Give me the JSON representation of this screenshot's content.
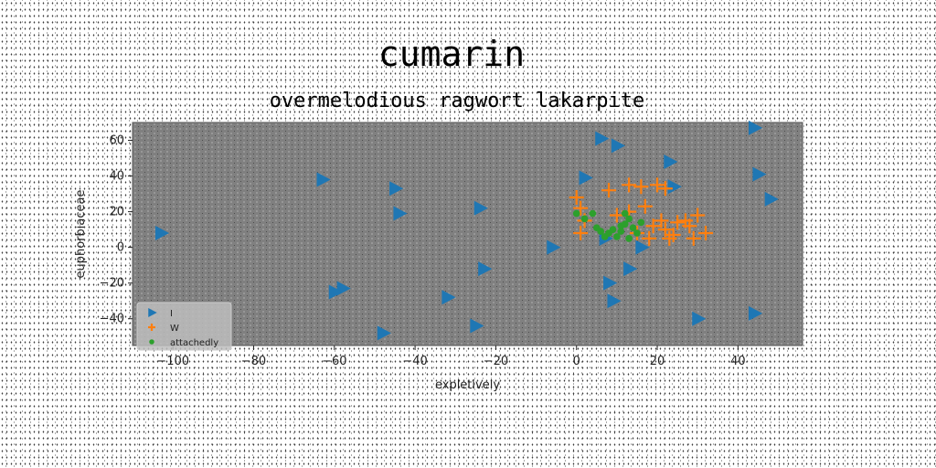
{
  "chart_data": {
    "type": "scatter",
    "title": "cumarin",
    "subtitle": "overmelodious ragwort lakarpite",
    "xlabel": "expletively",
    "ylabel": "euphorbiaceae",
    "xlim": [
      -110,
      56
    ],
    "ylim": [
      -55,
      70
    ],
    "xticks": [
      -100,
      -80,
      -60,
      -40,
      -20,
      0,
      20,
      40
    ],
    "yticks": [
      -40,
      -20,
      0,
      20,
      40,
      60
    ],
    "grid": false,
    "legend_position": "bottom-left",
    "background_color": "#808080",
    "series": [
      {
        "name": "I",
        "marker": "triangle-right",
        "color": "#1f77b4",
        "points": [
          [
            -103,
            8
          ],
          [
            -63,
            38
          ],
          [
            -45,
            33
          ],
          [
            -44,
            19
          ],
          [
            -24,
            22
          ],
          [
            -23,
            -12
          ],
          [
            -58,
            -23
          ],
          [
            -60,
            -25
          ],
          [
            -32,
            -28
          ],
          [
            -48,
            -48
          ],
          [
            -25,
            -44
          ],
          [
            -6,
            0
          ],
          [
            2,
            39
          ],
          [
            6,
            61
          ],
          [
            10,
            57
          ],
          [
            23,
            48
          ],
          [
            24,
            34
          ],
          [
            7,
            5
          ],
          [
            16,
            0
          ],
          [
            13,
            -12
          ],
          [
            8,
            -20
          ],
          [
            9,
            -30
          ],
          [
            30,
            -40
          ],
          [
            44,
            -37
          ],
          [
            44,
            67
          ],
          [
            45,
            41
          ],
          [
            48,
            27
          ]
        ]
      },
      {
        "name": "W",
        "marker": "plus",
        "color": "#ff7f0e",
        "points": [
          [
            0,
            28
          ],
          [
            1,
            22
          ],
          [
            2,
            15
          ],
          [
            1,
            8
          ],
          [
            8,
            32
          ],
          [
            13,
            35
          ],
          [
            16,
            34
          ],
          [
            20,
            35
          ],
          [
            22,
            33
          ],
          [
            17,
            23
          ],
          [
            13,
            20
          ],
          [
            10,
            18
          ],
          [
            19,
            12
          ],
          [
            21,
            15
          ],
          [
            22,
            10
          ],
          [
            24,
            7
          ],
          [
            25,
            14
          ],
          [
            28,
            12
          ],
          [
            29,
            5
          ],
          [
            27,
            15
          ],
          [
            30,
            18
          ],
          [
            32,
            8
          ],
          [
            18,
            5
          ],
          [
            15,
            8
          ],
          [
            23,
            5
          ]
        ]
      },
      {
        "name": "attachedly",
        "marker": "circle",
        "color": "#2ca02c",
        "points": [
          [
            0,
            19
          ],
          [
            2,
            16
          ],
          [
            4,
            19
          ],
          [
            5,
            11
          ],
          [
            6,
            9
          ],
          [
            7,
            6
          ],
          [
            8,
            8
          ],
          [
            9,
            10
          ],
          [
            10,
            6
          ],
          [
            11,
            9
          ],
          [
            12,
            13
          ],
          [
            12,
            19
          ],
          [
            13,
            16
          ],
          [
            14,
            11
          ],
          [
            15,
            8
          ],
          [
            16,
            14
          ],
          [
            13,
            5
          ],
          [
            11,
            12
          ]
        ]
      }
    ]
  }
}
